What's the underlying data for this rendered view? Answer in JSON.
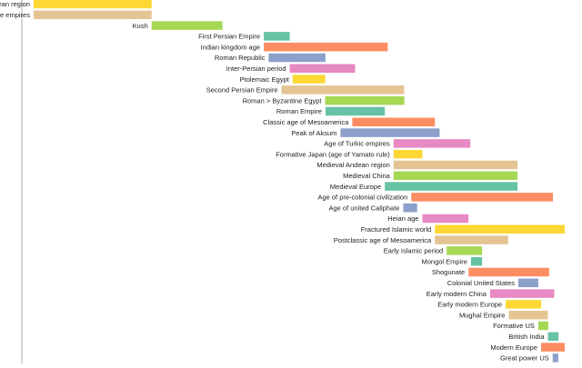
{
  "chart_data": {
    "type": "bar",
    "subtype": "timeline-gantt",
    "orientation": "horizontal",
    "title": "",
    "xlabel": "",
    "ylabel": "",
    "x_axis_visible": false,
    "grid": false,
    "legend": "none",
    "x_range": [
      -2600,
      2000
    ],
    "bar_colors_cycle": [
      "#fdd835",
      "#e5c494",
      "#a6d854",
      "#66c2a5",
      "#fc8d62",
      "#8da0cb",
      "#e78ac3"
    ],
    "y_axis_color": "#999999",
    "categories": [
      "Ancient Andean region",
      "Ancient Steppe empires",
      "Kush",
      "First Persian Empire",
      "Indian kingdom age",
      "Roman Republic",
      "Inter-Persian period",
      "Ptolemaic Egypt",
      "Second Persian Empire",
      "Roman > Byzantine Egypt",
      "Roman Empire",
      "Classic age of Mesoamerica",
      "Peak of Aksum",
      "Age of Turkic empires",
      "Formative Japan (age of Yamato rule)",
      "Medieval Andean region",
      "Medieval China",
      "Medieval Europe",
      "Age of pre-colonial civilization",
      "Age of united Caliphate",
      "Heian age",
      "Fractured Islamic world",
      "Postclassic age of Mesoamerica",
      "Early Islamic period",
      "Mongol Empire",
      "Shogunate",
      "Colonial United States",
      "Early modern China",
      "Early modern Europe",
      "Mughal Empire",
      "Formative US",
      "British India",
      "Modern Europe",
      "Great power US"
    ],
    "series": [
      {
        "values": [
          [
            -2500,
            -1500
          ],
          [
            -2500,
            -1500
          ],
          [
            -1500,
            -900
          ],
          [
            -550,
            -330
          ],
          [
            -550,
            500
          ],
          [
            -509,
            -27
          ],
          [
            -330,
            224
          ],
          [
            -305,
            -30
          ],
          [
            -400,
            640
          ],
          [
            -30,
            641
          ],
          [
            -27,
            476
          ],
          [
            200,
            900
          ],
          [
            100,
            940
          ],
          [
            550,
            1200
          ],
          [
            550,
            794
          ],
          [
            550,
            1600
          ],
          [
            550,
            1600
          ],
          [
            476,
            1600
          ],
          [
            700,
            1900
          ],
          [
            632,
            750
          ],
          [
            794,
            1185
          ],
          [
            900,
            2000
          ],
          [
            900,
            1521
          ],
          [
            1000,
            1300
          ],
          [
            1206,
            1300
          ],
          [
            1185,
            1868
          ],
          [
            1607,
            1776
          ],
          [
            1368,
            1911
          ],
          [
            1500,
            1800
          ],
          [
            1526,
            1857
          ],
          [
            1776,
            1861
          ],
          [
            1858,
            1947
          ],
          [
            1800,
            2000
          ],
          [
            1898,
            1945
          ]
        ]
      }
    ]
  }
}
